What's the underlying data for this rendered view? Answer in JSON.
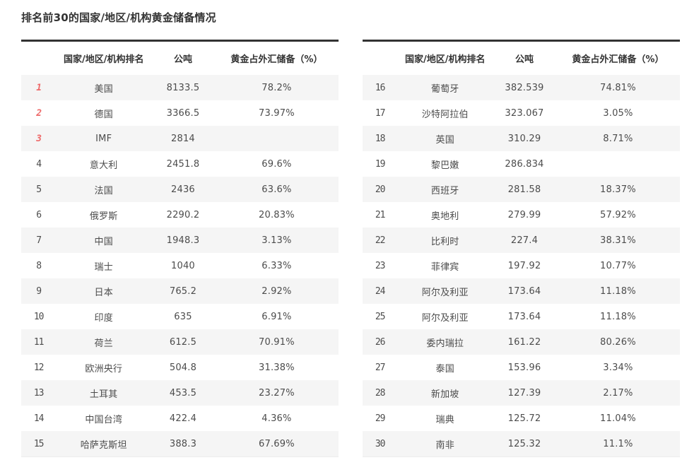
{
  "title": "排名前30的国家/地区/机构黄金储备情况",
  "columns": {
    "rank": "",
    "name": "国家/地区/机构排名",
    "tonnes": "公吨",
    "pct": "黄金占外汇储备（%）"
  },
  "colors": {
    "accent_rank_top3": "#ee6a6a",
    "rank_gray": "#828282",
    "row_alt_bg": "#f5f5f5",
    "table_top_border": "#333333",
    "body_text": "#4c4c4c"
  },
  "tables": [
    {
      "rows": [
        {
          "rank": "1",
          "name": "美国",
          "tonnes": "8133.5",
          "pct": "78.2%"
        },
        {
          "rank": "2",
          "name": "德国",
          "tonnes": "3366.5",
          "pct": "73.97%"
        },
        {
          "rank": "3",
          "name": "IMF",
          "tonnes": "2814",
          "pct": ""
        },
        {
          "rank": "4",
          "name": "意大利",
          "tonnes": "2451.8",
          "pct": "69.6%"
        },
        {
          "rank": "5",
          "name": "法国",
          "tonnes": "2436",
          "pct": "63.6%"
        },
        {
          "rank": "6",
          "name": "俄罗斯",
          "tonnes": "2290.2",
          "pct": "20.83%"
        },
        {
          "rank": "7",
          "name": "中国",
          "tonnes": "1948.3",
          "pct": "3.13%"
        },
        {
          "rank": "8",
          "name": "瑞士",
          "tonnes": "1040",
          "pct": "6.33%"
        },
        {
          "rank": "9",
          "name": "日本",
          "tonnes": "765.2",
          "pct": "2.92%"
        },
        {
          "rank": "10",
          "name": "印度",
          "tonnes": "635",
          "pct": "6.91%"
        },
        {
          "rank": "11",
          "name": "荷兰",
          "tonnes": "612.5",
          "pct": "70.91%"
        },
        {
          "rank": "12",
          "name": "欧洲央行",
          "tonnes": "504.8",
          "pct": "31.38%"
        },
        {
          "rank": "13",
          "name": "土耳其",
          "tonnes": "453.5",
          "pct": "23.27%"
        },
        {
          "rank": "14",
          "name": "中国台湾",
          "tonnes": "422.4",
          "pct": "4.36%"
        },
        {
          "rank": "15",
          "name": "哈萨克斯坦",
          "tonnes": "388.3",
          "pct": "67.69%"
        }
      ]
    },
    {
      "rows": [
        {
          "rank": "16",
          "name": "葡萄牙",
          "tonnes": "382.539",
          "pct": "74.81%"
        },
        {
          "rank": "17",
          "name": "沙特阿拉伯",
          "tonnes": "323.067",
          "pct": "3.05%"
        },
        {
          "rank": "18",
          "name": "英国",
          "tonnes": "310.29",
          "pct": "8.71%"
        },
        {
          "rank": "19",
          "name": "黎巴嫩",
          "tonnes": "286.834",
          "pct": ""
        },
        {
          "rank": "20",
          "name": "西班牙",
          "tonnes": "281.58",
          "pct": "18.37%"
        },
        {
          "rank": "21",
          "name": "奥地利",
          "tonnes": "279.99",
          "pct": "57.92%"
        },
        {
          "rank": "22",
          "name": "比利时",
          "tonnes": "227.4",
          "pct": "38.31%"
        },
        {
          "rank": "23",
          "name": "菲律宾",
          "tonnes": "197.92",
          "pct": "10.77%"
        },
        {
          "rank": "24",
          "name": "阿尔及利亚",
          "tonnes": "173.64",
          "pct": "11.18%"
        },
        {
          "rank": "25",
          "name": "阿尔及利亚",
          "tonnes": "173.64",
          "pct": "11.18%"
        },
        {
          "rank": "26",
          "name": "委内瑞拉",
          "tonnes": "161.22",
          "pct": "80.26%"
        },
        {
          "rank": "27",
          "name": "泰国",
          "tonnes": "153.96",
          "pct": "3.34%"
        },
        {
          "rank": "28",
          "name": "新加坡",
          "tonnes": "127.39",
          "pct": "2.17%"
        },
        {
          "rank": "29",
          "name": "瑞典",
          "tonnes": "125.72",
          "pct": "11.04%"
        },
        {
          "rank": "30",
          "name": "南非",
          "tonnes": "125.32",
          "pct": "11.1%"
        }
      ]
    }
  ]
}
